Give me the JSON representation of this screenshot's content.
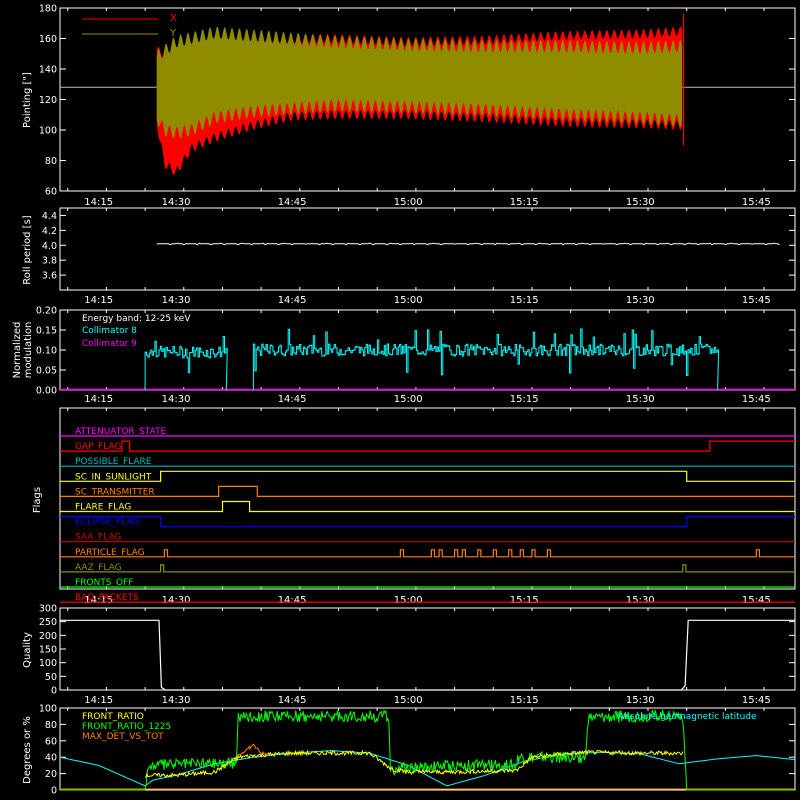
{
  "chart_data": [
    {
      "type": "line",
      "panel": "pointing",
      "ylabel": "Pointing [\"]",
      "ylim": [
        60,
        180
      ],
      "yticks": [
        60,
        80,
        100,
        120,
        140,
        160,
        180
      ],
      "xlim_min": [
        855,
        950
      ],
      "x_ticks": [
        "14:15",
        "14:30",
        "14:45",
        "15:00",
        "15:15",
        "15:30",
        "15:45"
      ],
      "series": [
        {
          "name": "X",
          "color": "#ff0000",
          "upper": [
            [
              867.5,
              152
            ],
            [
              870,
              148
            ],
            [
              880,
              160
            ],
            [
              890,
              160
            ],
            [
              900,
              158
            ],
            [
              910,
              159
            ],
            [
              920,
              162
            ],
            [
              930,
              163
            ],
            [
              935.5,
              165
            ]
          ],
          "lower": [
            [
              867.5,
              105
            ],
            [
              868.5,
              78
            ],
            [
              870,
              72
            ],
            [
              872,
              88
            ],
            [
              875,
              95
            ],
            [
              880,
              103
            ],
            [
              885,
              109
            ],
            [
              890,
              110
            ],
            [
              900,
              110
            ],
            [
              910,
              108
            ],
            [
              920,
              105
            ],
            [
              930,
              104
            ],
            [
              935.5,
              103
            ]
          ]
        },
        {
          "name": "Y",
          "color": "#8f8c00",
          "upper": [
            [
              867.5,
              148
            ],
            [
              870,
              158
            ],
            [
              875,
              164
            ],
            [
              880,
              162
            ],
            [
              890,
              158
            ],
            [
              900,
              156
            ],
            [
              910,
              155
            ],
            [
              920,
              155
            ],
            [
              930,
              154
            ],
            [
              935.5,
              155
            ]
          ],
          "lower": [
            [
              867.5,
              108
            ],
            [
              868.5,
              100
            ],
            [
              870,
              98
            ],
            [
              872,
              100
            ],
            [
              875,
              108
            ],
            [
              880,
              112
            ],
            [
              885,
              114
            ],
            [
              890,
              116
            ],
            [
              900,
              115
            ],
            [
              910,
              113
            ],
            [
              920,
              110
            ],
            [
              930,
              108
            ],
            [
              935.5,
              106
            ]
          ]
        }
      ],
      "reference_line": 128,
      "reference_color": "#bbbbbb"
    },
    {
      "type": "line",
      "panel": "roll",
      "ylabel": "Roll period [s]",
      "ylim": [
        3.4,
        4.5
      ],
      "yticks": [
        "3.6",
        "3.8",
        "4.0",
        "4.2",
        "4.4"
      ],
      "series": [
        {
          "name": "",
          "color": "#ffffff",
          "x_range": [
            867.5,
            948
          ],
          "value": 4.02
        }
      ]
    },
    {
      "type": "line",
      "panel": "modulation",
      "ylabel_line1": "Normalized",
      "ylabel_line2": "modulation",
      "ylim": [
        0,
        0.2
      ],
      "yticks": [
        "0.00",
        "0.05",
        "0.10",
        "0.15",
        "0.20"
      ],
      "legend": [
        "Energy band: 12-25 keV",
        "Collimator 8",
        "Collimator 9"
      ],
      "legend_colors": [
        "#ffffff",
        "#00ffff",
        "#ff00ff"
      ],
      "series": [
        {
          "name": "Collimator 8",
          "color": "#00ffff",
          "segments": [
            [
              866,
              876.5,
              0.095
            ],
            [
              880,
              940,
              0.1
            ]
          ]
        },
        {
          "name": "Collimator 9",
          "color": "#ff00ff",
          "value": 0.0
        }
      ]
    },
    {
      "type": "line",
      "panel": "flags",
      "ylabel": "Flags",
      "flags": [
        {
          "label": "ATTENUATOR_STATE",
          "color": "#ff00ff",
          "transitions": []
        },
        {
          "label": "GAP_FLAG",
          "color": "#ff0000",
          "transitions": [
            [
              863,
              1
            ],
            [
              864,
              0
            ],
            [
              938,
              0
            ],
            [
              939,
              1
            ]
          ]
        },
        {
          "label": "POSSIBLE_FLARE",
          "color": "#00bbbb",
          "transitions": []
        },
        {
          "label": "SC_IN_SUNLIGHT",
          "color": "#ffff00",
          "transitions": [
            [
              867.5,
              0
            ],
            [
              868,
              1
            ],
            [
              935.5,
              1
            ],
            [
              936,
              0
            ]
          ]
        },
        {
          "label": "SC_TRANSMITTER",
          "color": "#ff8000",
          "transitions": [
            [
              875,
              0
            ],
            [
              875.5,
              1
            ],
            [
              880,
              1
            ],
            [
              880.5,
              0
            ]
          ]
        },
        {
          "label": "FLARE_FLAG",
          "color": "#ffff00",
          "transitions": [
            [
              875.5,
              0
            ],
            [
              876,
              1
            ],
            [
              879,
              1
            ],
            [
              879.5,
              0
            ]
          ]
        },
        {
          "label": "ECLIPSE_FLAG",
          "color": "#0000ff",
          "transitions": [
            [
              867.5,
              1
            ],
            [
              868,
              0
            ],
            [
              935.5,
              0
            ],
            [
              936,
              1
            ]
          ]
        },
        {
          "label": "SAA_FLAG",
          "color": "#cc0000",
          "transitions": []
        },
        {
          "label": "PARTICLE_FLAG",
          "color": "#ff8000",
          "spikes": [
            868.5,
            899,
            903,
            904,
            906,
            907,
            909,
            911,
            913,
            914.5,
            916,
            918,
            945
          ]
        },
        {
          "label": "AAZ_FLAG",
          "color": "#8f8c00",
          "spikes": [
            868,
            935.5
          ]
        },
        {
          "label": "FRONTS_OFF",
          "color": "#00ff00",
          "transitions": []
        },
        {
          "label": "BAD_PACKETS",
          "color": "#ff0000",
          "transitions": []
        }
      ]
    },
    {
      "type": "line",
      "panel": "quality",
      "ylabel": "Quality",
      "ylim": [
        0,
        300
      ],
      "yticks": [
        "0",
        "50",
        "100",
        "150",
        "200",
        "250",
        "300"
      ],
      "series": [
        {
          "name": "",
          "color": "#ffffff",
          "points": [
            [
              855,
              255
            ],
            [
              867.8,
              255
            ],
            [
              868.1,
              10
            ],
            [
              868.6,
              0
            ],
            [
              935.3,
              0
            ],
            [
              935.8,
              15
            ],
            [
              936.2,
              255
            ],
            [
              950,
              255
            ]
          ]
        }
      ]
    },
    {
      "type": "line",
      "panel": "ratios",
      "ylabel": "Degrees or %",
      "ylim": [
        0,
        100
      ],
      "yticks": [
        "0",
        "20",
        "40",
        "60",
        "80",
        "100"
      ],
      "legend": [
        "FRONT_RATIO",
        "FRONT_RATIO_1225",
        "MAX_DET_VS_TOT"
      ],
      "legend_colors": [
        "#ffff00",
        "#00ff00",
        "#ff8000"
      ],
      "annotation": "Absolute geomagnetic latitude",
      "annotation_color": "#00ffff",
      "series": [
        {
          "name": "FRONT_RATIO_1225",
          "color": "#00ff00",
          "points": [
            [
              855,
              0
            ],
            [
              866,
              0
            ],
            [
              866.3,
              25
            ],
            [
              867,
              30
            ],
            [
              870,
              32
            ],
            [
              875,
              33
            ],
            [
              877.8,
              33
            ],
            [
              878,
              90
            ],
            [
              885,
              90
            ],
            [
              895,
              90
            ],
            [
              897.5,
              90
            ],
            [
              897.7,
              25
            ],
            [
              900,
              27
            ],
            [
              905,
              30
            ],
            [
              910,
              30
            ],
            [
              914,
              30
            ],
            [
              914.2,
              40
            ],
            [
              920,
              40
            ],
            [
              923,
              40
            ],
            [
              923.2,
              88
            ],
            [
              930,
              90
            ],
            [
              935.5,
              92
            ],
            [
              936,
              0
            ],
            [
              950,
              0
            ]
          ]
        },
        {
          "name": "FRONT_RATIO",
          "color": "#ffff00",
          "points": [
            [
              866,
              18
            ],
            [
              870,
              18
            ],
            [
              875,
              22
            ],
            [
              878,
              40
            ],
            [
              880,
              42
            ],
            [
              885,
              45
            ],
            [
              890,
              45
            ],
            [
              895,
              45
            ],
            [
              898,
              25
            ],
            [
              900,
              22
            ],
            [
              905,
              22
            ],
            [
              910,
              23
            ],
            [
              914,
              24
            ],
            [
              916,
              40
            ],
            [
              920,
              44
            ],
            [
              923,
              46
            ],
            [
              930,
              45
            ],
            [
              935.5,
              45
            ]
          ]
        },
        {
          "name": "MAX_DET_VS_TOT",
          "color": "#ff8000",
          "points": [
            [
              878,
              42
            ],
            [
              879,
              48
            ],
            [
              880,
              55
            ],
            [
              881,
              45
            ],
            [
              882,
              43
            ]
          ]
        },
        {
          "name": "Absolute geomagnetic latitude",
          "color": "#00ffff",
          "points": [
            [
              855,
              40
            ],
            [
              860,
              30
            ],
            [
              866,
              5
            ],
            [
              867,
              12
            ],
            [
              870,
              18
            ],
            [
              875,
              32
            ],
            [
              880,
              40
            ],
            [
              885,
              45
            ],
            [
              890,
              48
            ],
            [
              895,
              45
            ],
            [
              900,
              30
            ],
            [
              905,
              5
            ],
            [
              910,
              18
            ],
            [
              915,
              35
            ],
            [
              920,
              44
            ],
            [
              925,
              46
            ],
            [
              930,
              44
            ],
            [
              935,
              32
            ],
            [
              940,
              38
            ],
            [
              945,
              42
            ],
            [
              950,
              37
            ]
          ]
        }
      ]
    }
  ]
}
